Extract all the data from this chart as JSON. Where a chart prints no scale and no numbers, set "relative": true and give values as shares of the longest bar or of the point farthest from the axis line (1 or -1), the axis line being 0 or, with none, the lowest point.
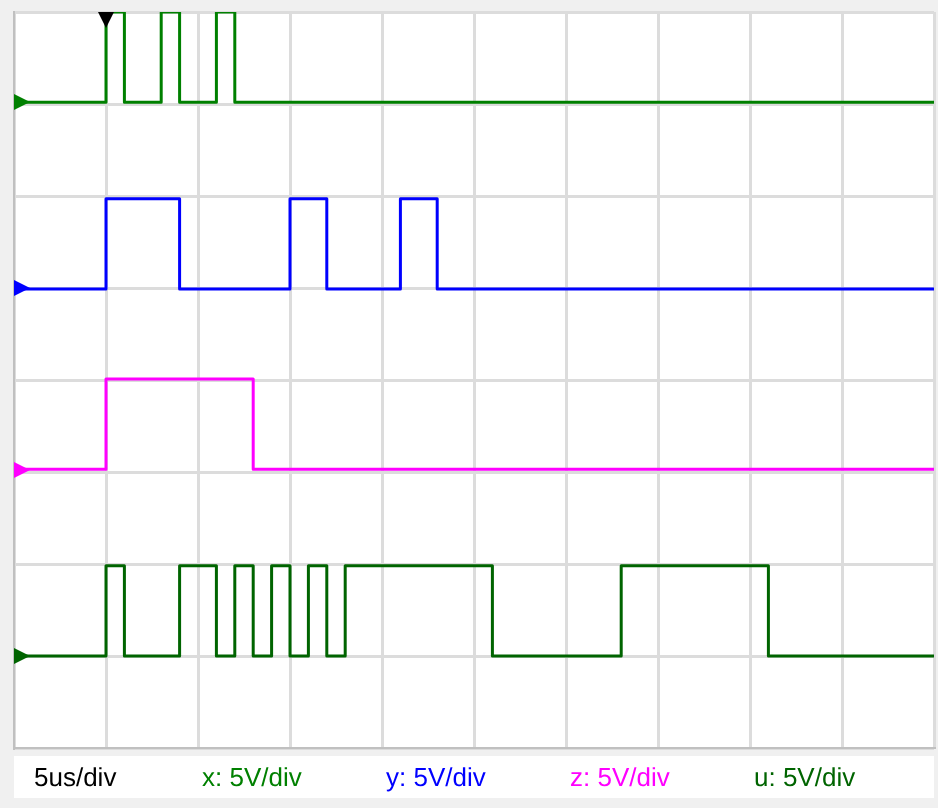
{
  "chart_data": {
    "type": "step",
    "relative": true,
    "categories": [
      null,
      null,
      null,
      null,
      null,
      null,
      null,
      null,
      null,
      null,
      null,
      null,
      null,
      null,
      null,
      null,
      null,
      null,
      null,
      null,
      null,
      null,
      null,
      null,
      null,
      null,
      null,
      null,
      null,
      null,
      null,
      null,
      null,
      null,
      null,
      null,
      null,
      null,
      null,
      null,
      null,
      null,
      null,
      null,
      null,
      null,
      null,
      null,
      null,
      null,
      null
    ],
    "grid": true,
    "marker": "none",
    "line_style": "solid",
    "annotations": [
      "5us/div"
    ],
    "series": [
      {
        "name": "x: 5V/div",
        "color": "#008000",
        "values": [
          0.86,
          0.86,
          0.86,
          0.86,
          0.86,
          1,
          0.86,
          0.86,
          1,
          0.86,
          0.86,
          1,
          0.86,
          0.86,
          0.86,
          0.86,
          0.86,
          0.86,
          0.86,
          0.86,
          0.86,
          0.86,
          0.86,
          0.86,
          0.86,
          0.86,
          0.86,
          0.86,
          0.86,
          0.86,
          0.86,
          0.86,
          0.86,
          0.86,
          0.86,
          0.86,
          0.86,
          0.86,
          0.86,
          0.86,
          0.86,
          0.86,
          0.86,
          0.86,
          0.86,
          0.86,
          0.86,
          0.86,
          0.86,
          0.86,
          0.86
        ]
      },
      {
        "name": "y: 5V/div",
        "color": "#0000ff",
        "values": [
          0.57,
          0.57,
          0.57,
          0.57,
          0.57,
          0.71,
          0.71,
          0.71,
          0.71,
          0.57,
          0.57,
          0.57,
          0.57,
          0.57,
          0.57,
          0.71,
          0.71,
          0.57,
          0.57,
          0.57,
          0.57,
          0.71,
          0.71,
          0.57,
          0.57,
          0.57,
          0.57,
          0.57,
          0.57,
          0.57,
          0.57,
          0.57,
          0.57,
          0.57,
          0.57,
          0.57,
          0.57,
          0.57,
          0.57,
          0.57,
          0.57,
          0.57,
          0.57,
          0.57,
          0.57,
          0.57,
          0.57,
          0.57,
          0.57,
          0.57,
          0.57
        ]
      },
      {
        "name": "z: 5V/div",
        "color": "#ff00ff",
        "values": [
          0.29,
          0.29,
          0.29,
          0.29,
          0.29,
          0.43,
          0.43,
          0.43,
          0.43,
          0.43,
          0.43,
          0.43,
          0.43,
          0.29,
          0.29,
          0.29,
          0.29,
          0.29,
          0.29,
          0.29,
          0.29,
          0.29,
          0.29,
          0.29,
          0.29,
          0.29,
          0.29,
          0.29,
          0.29,
          0.29,
          0.29,
          0.29,
          0.29,
          0.29,
          0.29,
          0.29,
          0.29,
          0.29,
          0.29,
          0.29,
          0.29,
          0.29,
          0.29,
          0.29,
          0.29,
          0.29,
          0.29,
          0.29,
          0.29,
          0.29,
          0.29
        ]
      },
      {
        "name": "u: 5V/div",
        "color": "#006400",
        "values": [
          0,
          0,
          0,
          0,
          0,
          0.14,
          0,
          0,
          0,
          0.14,
          0.14,
          0,
          0.14,
          0,
          0.14,
          0,
          0.14,
          0,
          0.14,
          0.14,
          0.14,
          0.14,
          0.14,
          0.14,
          0.14,
          0.14,
          0,
          0,
          0,
          0,
          0,
          0,
          0,
          0.14,
          0.14,
          0.14,
          0.14,
          0.14,
          0.14,
          0.14,
          0.14,
          0,
          0,
          0,
          0,
          0,
          0,
          0,
          0,
          0,
          0
        ]
      }
    ]
  }
}
